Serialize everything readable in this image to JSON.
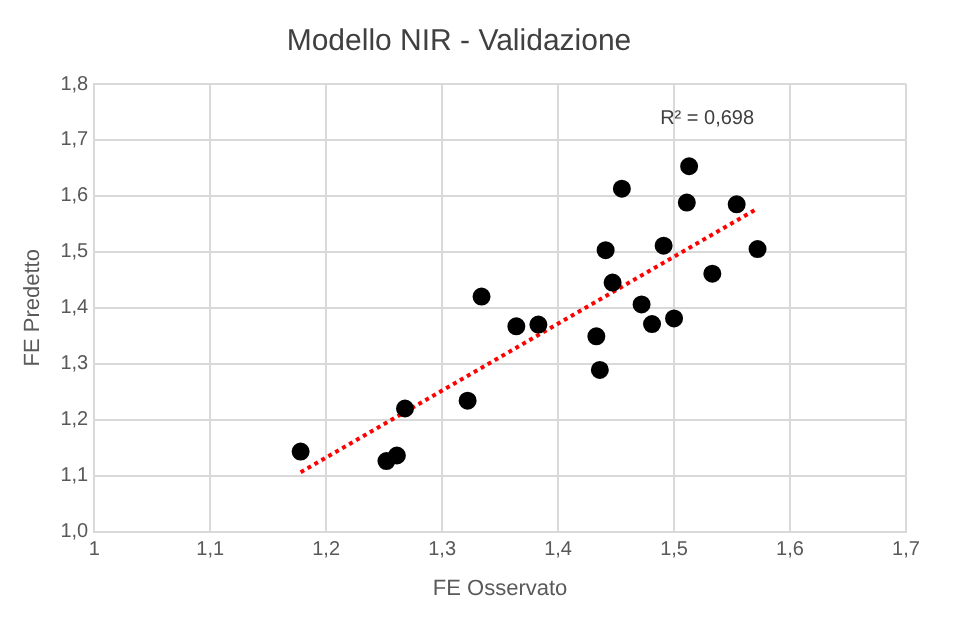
{
  "chart_data": {
    "type": "scatter",
    "title": "Modello NIR - Validazione",
    "xlabel": "FE Osservato",
    "ylabel": "FE Predetto",
    "xlim": [
      1,
      1.7
    ],
    "xticks": [
      1,
      {
        "value": 1.1,
        "label": "1,1"
      },
      {
        "value": 1.2,
        "label": "1,2"
      },
      {
        "value": 1.3,
        "label": "1,3"
      },
      {
        "value": 1.4,
        "label": "1,4"
      },
      {
        "value": 1.5,
        "label": "1,5"
      },
      {
        "value": 1.6,
        "label": "1,6"
      },
      {
        "value": 1.7,
        "label": "1,7"
      }
    ],
    "ylim": [
      1,
      1.8
    ],
    "yticks": [
      {
        "value": 1,
        "label": "1,0"
      },
      {
        "value": 1.1,
        "label": "1,1"
      },
      {
        "value": 1.2,
        "label": "1,2"
      },
      {
        "value": 1.3,
        "label": "1,3"
      },
      {
        "value": 1.4,
        "label": "1,4"
      },
      {
        "value": 1.5,
        "label": "1,5"
      },
      {
        "value": 1.6,
        "label": "1,6"
      },
      {
        "value": 1.7,
        "label": "1,7"
      },
      {
        "value": 1.8,
        "label": "1,8"
      }
    ],
    "grid": true,
    "marker": "circle",
    "annotations": [
      "R² = 0,698"
    ],
    "series": [
      {
        "color": "#000000",
        "x": [
          1.178,
          1.252,
          1.261,
          1.268,
          1.322,
          1.334,
          1.364,
          1.383,
          1.433,
          1.436,
          1.441,
          1.447,
          1.455,
          1.472,
          1.481,
          1.491,
          1.5,
          1.511,
          1.513,
          1.533,
          1.554,
          1.572
        ],
        "values": [
          1.143,
          1.126,
          1.136,
          1.22,
          1.234,
          1.42,
          1.367,
          1.37,
          1.349,
          1.289,
          1.503,
          1.445,
          1.613,
          1.406,
          1.371,
          1.511,
          1.381,
          1.588,
          1.653,
          1.461,
          1.585,
          1.505
        ]
      },
      {
        "type": "line",
        "color": "#ff0000",
        "line_style": "dotted",
        "marker": "none",
        "x": [
          1.178,
          1.57
        ],
        "values": [
          1.106,
          1.575
        ]
      }
    ]
  }
}
